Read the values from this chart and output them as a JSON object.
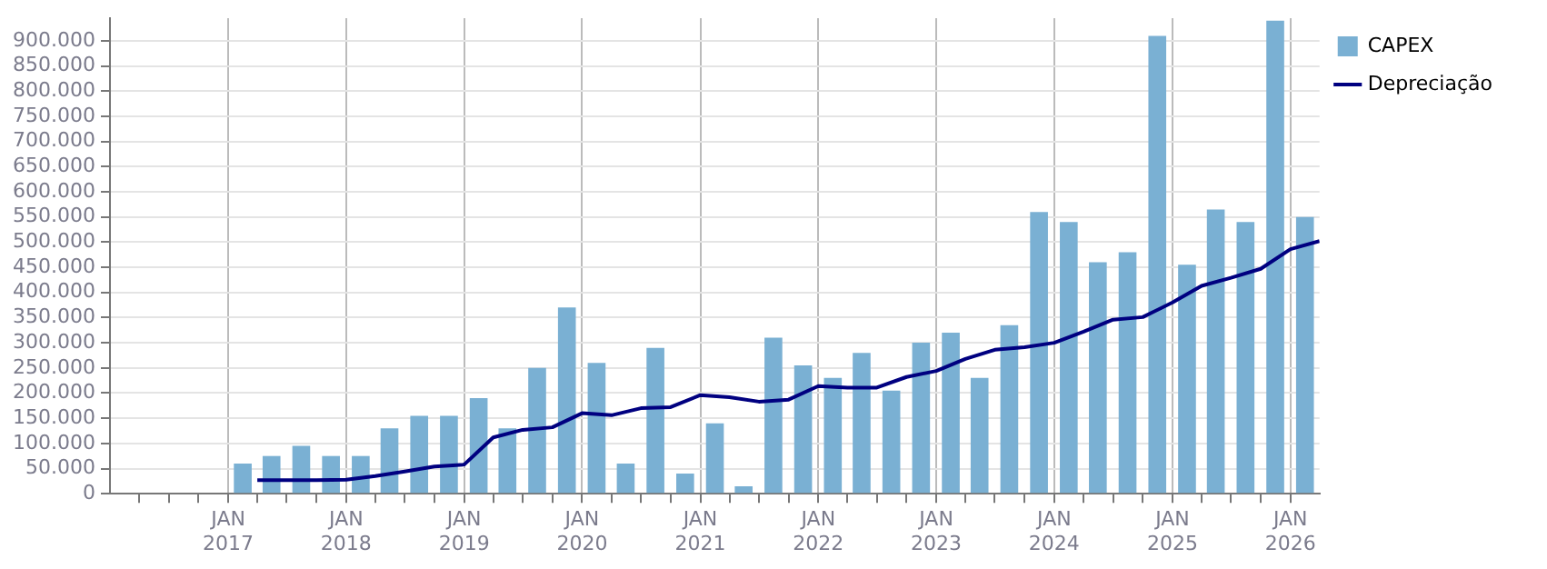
{
  "chart_data": {
    "type": "bar",
    "series": [
      {
        "name": "CAPEX",
        "color": "#7ab0d3",
        "x": [
          "2017-02-15",
          "2017-05-15",
          "2017-08-15",
          "2017-11-15",
          "2018-02-15",
          "2018-05-15",
          "2018-08-15",
          "2018-11-15",
          "2019-02-15",
          "2019-05-15",
          "2019-08-15",
          "2019-11-15",
          "2020-02-15",
          "2020-05-15",
          "2020-08-15",
          "2020-11-15",
          "2021-02-15",
          "2021-05-15",
          "2021-08-15",
          "2021-11-15",
          "2022-02-15",
          "2022-05-15",
          "2022-08-15",
          "2022-11-15",
          "2023-02-15",
          "2023-05-15",
          "2023-08-15",
          "2023-11-15",
          "2024-02-15",
          "2024-05-15",
          "2024-08-15",
          "2024-11-15",
          "2025-02-15",
          "2025-05-15",
          "2025-08-15",
          "2025-11-15",
          "2026-02-15"
        ],
        "values": [
          60000,
          75000,
          95000,
          75000,
          75000,
          130000,
          155000,
          155000,
          190000,
          130000,
          250000,
          370000,
          260000,
          60000,
          290000,
          40000,
          140000,
          15000,
          310000,
          255000,
          230000,
          280000,
          205000,
          300000,
          320000,
          230000,
          335000,
          560000,
          540000,
          460000,
          480000,
          910000,
          455000,
          565000,
          540000,
          940000,
          550000
        ]
      },
      {
        "name": "Depreciação",
        "type": "line",
        "color": "#000080",
        "x": [
          "2017-04",
          "2017-07",
          "2017-10",
          "2018-01",
          "2018-04",
          "2018-07",
          "2018-10",
          "2019-01",
          "2019-04",
          "2019-07",
          "2019-10",
          "2020-01",
          "2020-04",
          "2020-07",
          "2020-10",
          "2021-01",
          "2021-04",
          "2021-07",
          "2021-10",
          "2022-01",
          "2022-04",
          "2022-07",
          "2022-10",
          "2023-01",
          "2023-04",
          "2023-07",
          "2023-10",
          "2024-01",
          "2024-04",
          "2024-07",
          "2024-10",
          "2025-01",
          "2025-04",
          "2025-07",
          "2025-10",
          "2026-01",
          "2026-04"
        ],
        "values": [
          27000,
          27000,
          27000,
          28000,
          35000,
          44000,
          54000,
          58000,
          112000,
          127000,
          132000,
          160000,
          156000,
          170000,
          172000,
          196000,
          192000,
          183000,
          187000,
          214000,
          211000,
          211000,
          232000,
          244000,
          268000,
          286000,
          291000,
          300000,
          322000,
          346000,
          351000,
          380000,
          413000,
          429000,
          447000,
          486000,
          502000
        ]
      }
    ],
    "xlim": [
      "2016-01",
      "2026-04"
    ],
    "xticks": [
      {
        "value": "2016-04",
        "label": null
      },
      {
        "value": "2016-07",
        "label": null
      },
      {
        "value": "2016-10",
        "label": null
      },
      {
        "value": "2017-01",
        "label": "JAN 2017"
      },
      {
        "value": "2017-04",
        "label": null
      },
      {
        "value": "2017-07",
        "label": null
      },
      {
        "value": "2017-10",
        "label": null
      },
      {
        "value": "2018-01",
        "label": "JAN 2018"
      },
      {
        "value": "2018-04",
        "label": null
      },
      {
        "value": "2018-07",
        "label": null
      },
      {
        "value": "2018-10",
        "label": null
      },
      {
        "value": "2019-01",
        "label": "JAN 2019"
      },
      {
        "value": "2019-04",
        "label": null
      },
      {
        "value": "2019-07",
        "label": null
      },
      {
        "value": "2019-10",
        "label": null
      },
      {
        "value": "2020-01",
        "label": "JAN 2020"
      },
      {
        "value": "2020-04",
        "label": null
      },
      {
        "value": "2020-07",
        "label": null
      },
      {
        "value": "2020-10",
        "label": null
      },
      {
        "value": "2021-01",
        "label": "JAN 2021"
      },
      {
        "value": "2021-04",
        "label": null
      },
      {
        "value": "2021-07",
        "label": null
      },
      {
        "value": "2021-10",
        "label": null
      },
      {
        "value": "2022-01",
        "label": "JAN 2022"
      },
      {
        "value": "2022-04",
        "label": null
      },
      {
        "value": "2022-07",
        "label": null
      },
      {
        "value": "2022-10",
        "label": null
      },
      {
        "value": "2023-01",
        "label": "JAN 2023"
      },
      {
        "value": "2023-04",
        "label": null
      },
      {
        "value": "2023-07",
        "label": null
      },
      {
        "value": "2023-10",
        "label": null
      },
      {
        "value": "2024-01",
        "label": "JAN 2024"
      },
      {
        "value": "2024-04",
        "label": null
      },
      {
        "value": "2024-07",
        "label": null
      },
      {
        "value": "2024-10",
        "label": null
      },
      {
        "value": "2025-01",
        "label": "JAN 2025"
      },
      {
        "value": "2025-04",
        "label": null
      },
      {
        "value": "2025-07",
        "label": null
      },
      {
        "value": "2025-10",
        "label": null
      },
      {
        "value": "2026-01",
        "label": "JAN 2026"
      }
    ],
    "ylim": [
      0,
      945000
    ],
    "yticks": [
      {
        "value": 0,
        "label": "0"
      },
      {
        "value": 50000,
        "label": "50.000"
      },
      {
        "value": 100000,
        "label": "100.000"
      },
      {
        "value": 150000,
        "label": "150.000"
      },
      {
        "value": 200000,
        "label": "200.000"
      },
      {
        "value": 250000,
        "label": "250.000"
      },
      {
        "value": 300000,
        "label": "300.000"
      },
      {
        "value": 350000,
        "label": "350.000"
      },
      {
        "value": 400000,
        "label": "400.000"
      },
      {
        "value": 450000,
        "label": "450.000"
      },
      {
        "value": 500000,
        "label": "500.000"
      },
      {
        "value": 550000,
        "label": "550.000"
      },
      {
        "value": 600000,
        "label": "600.000"
      },
      {
        "value": 650000,
        "label": "650.000"
      },
      {
        "value": 700000,
        "label": "700.000"
      },
      {
        "value": 750000,
        "label": "750.000"
      },
      {
        "value": 800000,
        "label": "800.000"
      },
      {
        "value": 850000,
        "label": "850.000"
      },
      {
        "value": 900000,
        "label": "900.000"
      }
    ],
    "grid": true,
    "legend": "top right",
    "marker": "none",
    "line_style": "solid"
  }
}
